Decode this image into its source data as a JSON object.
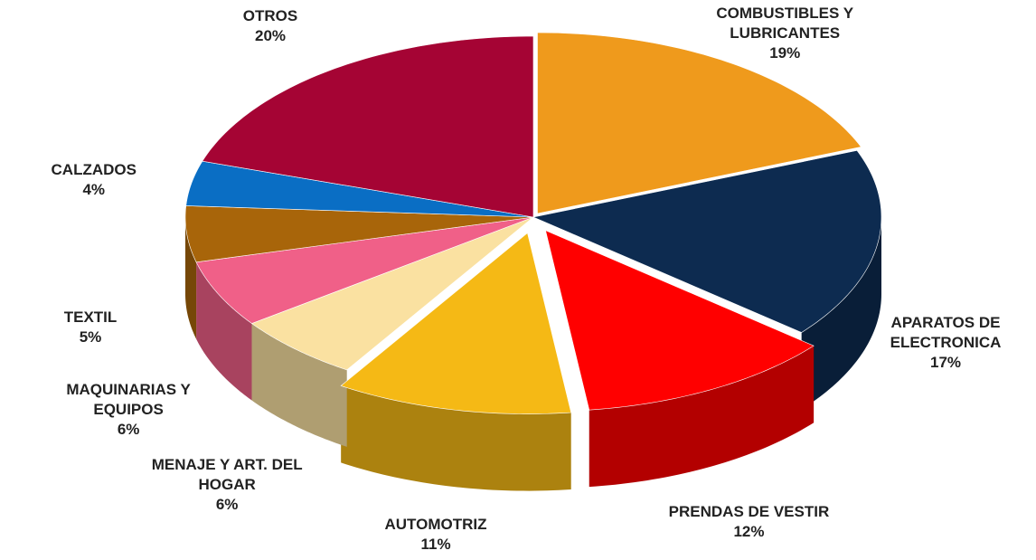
{
  "chart_data": {
    "type": "pie",
    "categories": [
      "COMBUSTIBLES Y LUBRICANTES",
      "APARATOS DE ELECTRONICA",
      "PRENDAS DE VESTIR",
      "AUTOMOTRIZ",
      "MENAJE Y ART. DEL HOGAR",
      "MAQUINARIAS Y EQUIPOS",
      "TEXTIL",
      "CALZADOS",
      "OTROS"
    ],
    "values": [
      19,
      17,
      12,
      11,
      6,
      6,
      5,
      4,
      20
    ],
    "value_labels": [
      "19%",
      "17%",
      "12%",
      "11%",
      "6%",
      "6%",
      "5%",
      "4%",
      "20%"
    ],
    "colors": [
      "#EF9A1C",
      "#0D2B50",
      "#FF0000",
      "#F5B915",
      "#FAE1A1",
      "#F06088",
      "#A8650A",
      "#0A6EC4",
      "#A50434"
    ]
  }
}
